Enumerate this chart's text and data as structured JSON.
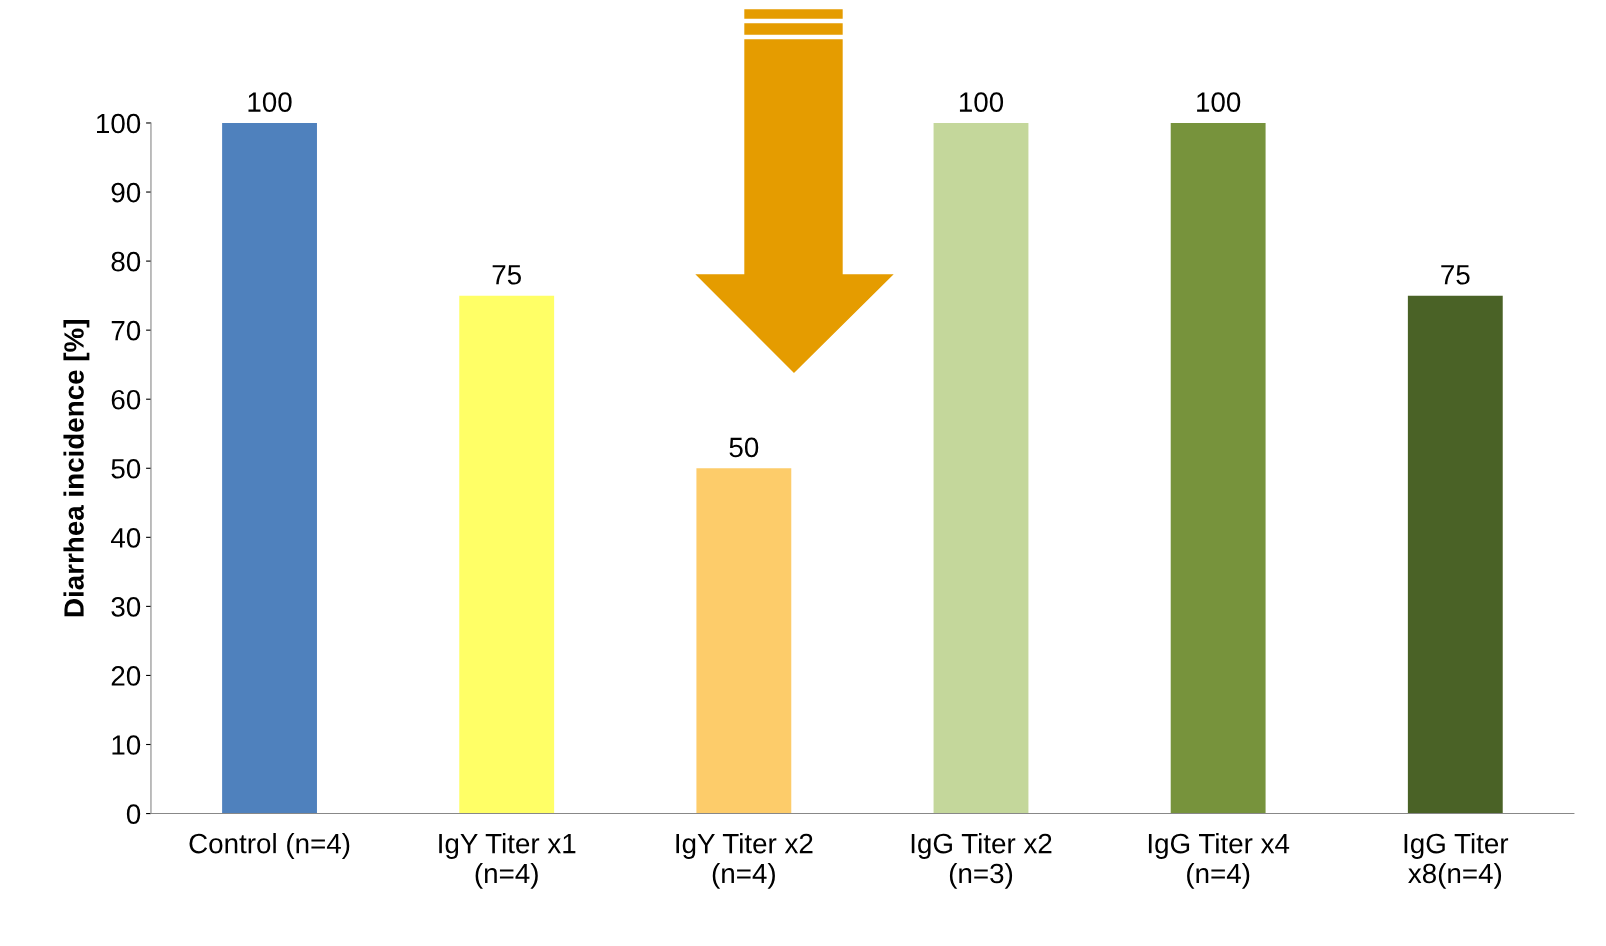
{
  "chart_data": {
    "type": "bar",
    "ylabel": "Diarrhea incidence [%]",
    "categories": [
      "Control (n=4)",
      "IgY Titer x1\n(n=4)",
      "IgY Titer x2\n(n=4)",
      "IgG Titer x2\n(n=3)",
      "IgG Titer x4\n(n=4)",
      "IgG Titer\nx8(n=4)"
    ],
    "values": [
      100,
      75,
      50,
      100,
      100,
      75
    ],
    "colors": [
      "#4f81bd",
      "#ffff66",
      "#fdcc6a",
      "#c4d79b",
      "#77933c",
      "#4a6226"
    ],
    "ylim": [
      0,
      100
    ],
    "yticks": [
      0,
      10,
      20,
      30,
      40,
      50,
      60,
      70,
      80,
      90,
      100
    ],
    "data_labels": true,
    "grid": false,
    "legend": false
  }
}
